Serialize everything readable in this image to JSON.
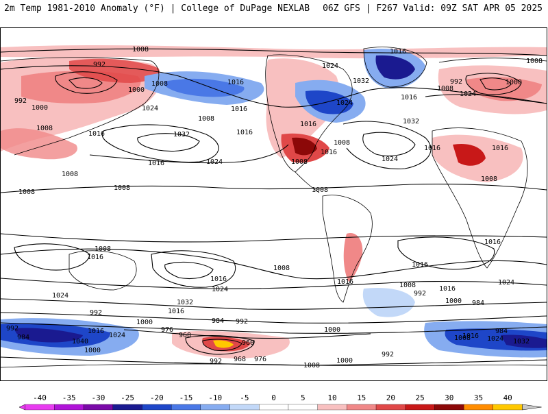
{
  "header": {
    "left_title": "2m Temp 1981-2010 Anomaly (°F) | College of DuPage NEXLAB",
    "right_title": "06Z GFS | F267 Valid: 09Z SAT APR 05 2025"
  },
  "colorbar": {
    "ticks": [
      "-40",
      "-35",
      "-30",
      "-25",
      "-20",
      "-15",
      "-10",
      "-5",
      "0",
      "5",
      "10",
      "15",
      "20",
      "25",
      "30",
      "35",
      "40"
    ],
    "colors": [
      "#e83cf0",
      "#b014d8",
      "#7a0aa8",
      "#1a1a90",
      "#1e46c8",
      "#4a78e6",
      "#86acf0",
      "#c2d8f8",
      "#ffffff",
      "#ffffff",
      "#f8c0c0",
      "#f08888",
      "#e04848",
      "#c81818",
      "#8c0808",
      "#ff8c00",
      "#ffc800",
      "#c8c8c8"
    ]
  },
  "pressure_labels": [
    {
      "t": "1008"
    },
    {
      "t": "1016"
    },
    {
      "t": "992"
    },
    {
      "t": "1000"
    },
    {
      "t": "1008"
    },
    {
      "t": "992"
    },
    {
      "t": "1000"
    },
    {
      "t": "1008"
    },
    {
      "t": "1016"
    },
    {
      "t": "1024"
    },
    {
      "t": "1008"
    },
    {
      "t": "1016"
    },
    {
      "t": "1032"
    },
    {
      "t": "1016"
    },
    {
      "t": "1024"
    },
    {
      "t": "1016"
    },
    {
      "t": "1024"
    },
    {
      "t": "1032"
    },
    {
      "t": "1016"
    },
    {
      "t": "1024"
    },
    {
      "t": "1016"
    },
    {
      "t": "1008"
    },
    {
      "t": "1016"
    },
    {
      "t": "1032"
    },
    {
      "t": "1024"
    },
    {
      "t": "1016"
    },
    {
      "t": "992"
    },
    {
      "t": "1000"
    },
    {
      "t": "1008"
    },
    {
      "t": "1024"
    },
    {
      "t": "1016"
    },
    {
      "t": "1008"
    },
    {
      "t": "1008"
    },
    {
      "t": "1008"
    },
    {
      "t": "1008"
    },
    {
      "t": "1008"
    },
    {
      "t": "1016"
    },
    {
      "t": "1008"
    },
    {
      "t": "1016"
    },
    {
      "t": "1024"
    },
    {
      "t": "1008"
    },
    {
      "t": "1016"
    },
    {
      "t": "1032"
    },
    {
      "t": "1016"
    },
    {
      "t": "1008"
    },
    {
      "t": "1024"
    },
    {
      "t": "1016"
    },
    {
      "t": "1008"
    },
    {
      "t": "1016"
    },
    {
      "t": "1016"
    },
    {
      "t": "1008"
    },
    {
      "t": "992"
    },
    {
      "t": "1000"
    },
    {
      "t": "984"
    },
    {
      "t": "1024"
    },
    {
      "t": "1016"
    },
    {
      "t": "992"
    },
    {
      "t": "1000"
    },
    {
      "t": "976"
    },
    {
      "t": "984"
    },
    {
      "t": "992"
    },
    {
      "t": "968"
    },
    {
      "t": "960"
    },
    {
      "t": "1000"
    },
    {
      "t": "1000"
    },
    {
      "t": "992"
    },
    {
      "t": "968"
    },
    {
      "t": "976"
    },
    {
      "t": "1008"
    },
    {
      "t": "1000"
    },
    {
      "t": "992"
    },
    {
      "t": "992"
    },
    {
      "t": "984"
    },
    {
      "t": "1040"
    },
    {
      "t": "1016"
    },
    {
      "t": "1024"
    },
    {
      "t": "1008"
    },
    {
      "t": "1016"
    },
    {
      "t": "1024"
    },
    {
      "t": "984"
    },
    {
      "t": "1032"
    }
  ]
}
